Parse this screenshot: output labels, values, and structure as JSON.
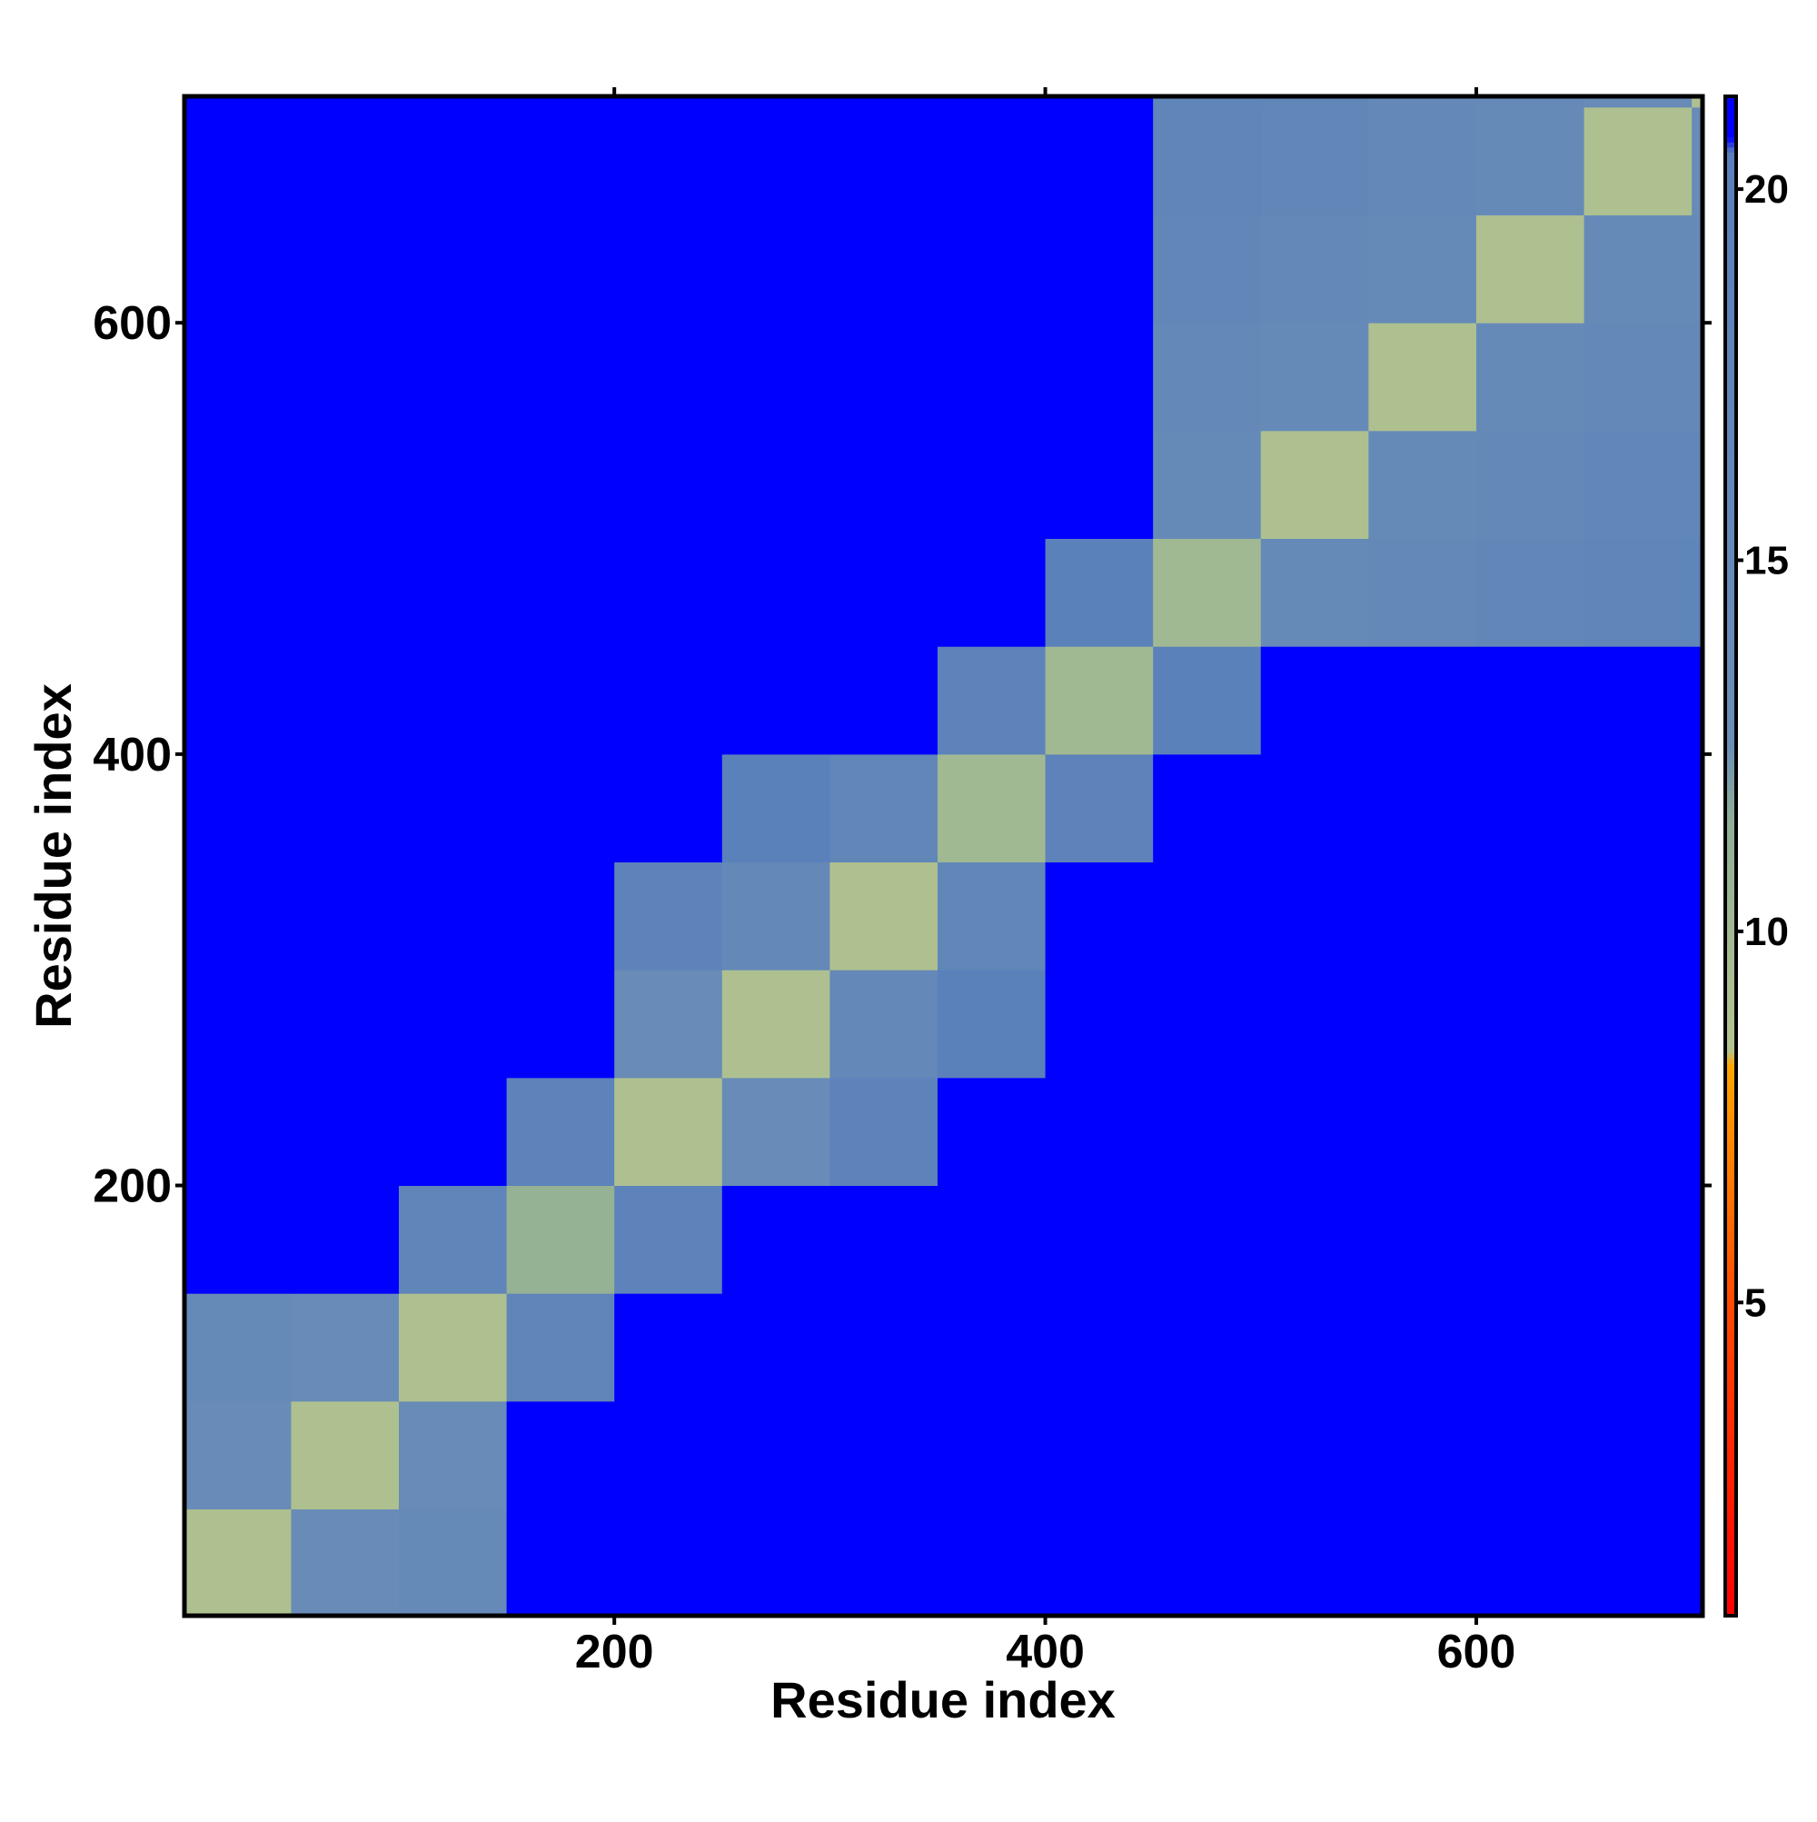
{
  "chart_data": {
    "type": "heatmap",
    "x_label": "Residue index",
    "y_label": "Residue index",
    "xlim": [
      0.5,
      705
    ],
    "ylim": [
      0.5,
      705
    ],
    "xticks": [
      200,
      400,
      600
    ],
    "yticks": [
      200,
      400,
      600
    ],
    "x_edges": [
      0.5,
      50,
      100,
      150,
      200,
      250,
      300,
      350,
      400,
      450,
      500,
      550,
      600,
      650,
      700,
      705
    ],
    "y_edges": [
      0.5,
      50,
      100,
      150,
      200,
      250,
      300,
      350,
      400,
      450,
      500,
      550,
      600,
      650,
      700,
      705
    ],
    "values": [
      [
        9,
        14,
        15,
        21,
        21,
        21,
        21,
        21,
        21,
        21,
        21,
        21,
        21,
        21,
        21
      ],
      [
        14,
        9,
        14,
        21,
        21,
        21,
        21,
        21,
        21,
        21,
        21,
        21,
        21,
        21,
        21
      ],
      [
        15,
        14,
        9,
        18,
        21,
        21,
        21,
        21,
        21,
        21,
        21,
        21,
        21,
        21,
        21
      ],
      [
        21,
        21,
        18,
        11,
        19,
        21,
        21,
        21,
        21,
        21,
        21,
        21,
        21,
        21,
        21
      ],
      [
        21,
        21,
        21,
        19,
        9,
        14,
        19,
        21,
        21,
        21,
        21,
        21,
        21,
        21,
        21
      ],
      [
        21,
        21,
        21,
        21,
        14,
        9,
        16,
        20,
        21,
        21,
        21,
        21,
        21,
        21,
        21
      ],
      [
        21,
        21,
        21,
        21,
        19,
        16,
        9,
        17,
        21,
        21,
        21,
        21,
        21,
        21,
        21
      ],
      [
        21,
        21,
        21,
        21,
        21,
        20,
        17,
        10,
        19,
        21,
        21,
        21,
        21,
        21,
        21
      ],
      [
        21,
        21,
        21,
        21,
        21,
        21,
        21,
        19,
        10,
        20,
        21,
        21,
        21,
        21,
        21
      ],
      [
        21,
        21,
        21,
        21,
        21,
        21,
        21,
        21,
        20,
        10,
        15,
        16,
        17,
        18,
        18
      ],
      [
        21,
        21,
        21,
        21,
        21,
        21,
        21,
        21,
        21,
        15,
        9,
        15,
        16,
        17,
        17
      ],
      [
        21,
        21,
        21,
        21,
        21,
        21,
        21,
        21,
        21,
        16,
        15,
        9,
        15,
        16,
        16
      ],
      [
        21,
        21,
        21,
        21,
        21,
        21,
        21,
        21,
        21,
        17,
        16,
        15,
        9,
        15,
        15
      ],
      [
        21,
        21,
        21,
        21,
        21,
        21,
        21,
        21,
        21,
        18,
        17,
        16,
        15,
        9,
        14
      ],
      [
        21,
        21,
        21,
        21,
        21,
        21,
        21,
        21,
        21,
        18,
        17,
        16,
        15,
        14,
        9
      ]
    ],
    "colorbar_lim": [
      0.78,
      21.25
    ],
    "colorbar_ticks": [
      5,
      10,
      15,
      20
    ],
    "colorscale": [
      {
        "value": 0.78,
        "color": "#ff0000"
      },
      {
        "value": 5,
        "color": "#ff4a00"
      },
      {
        "value": 8.2,
        "color": "#ffa500"
      },
      {
        "value": 8.4,
        "color": "#b5c48e"
      },
      {
        "value": 11.5,
        "color": "#8fae96"
      },
      {
        "value": 12.5,
        "color": "#6b8fb6"
      },
      {
        "value": 20.5,
        "color": "#5a80bb"
      },
      {
        "value": 20.7,
        "color": "#0000ff"
      },
      {
        "value": 21.25,
        "color": "#0000ff"
      }
    ]
  }
}
